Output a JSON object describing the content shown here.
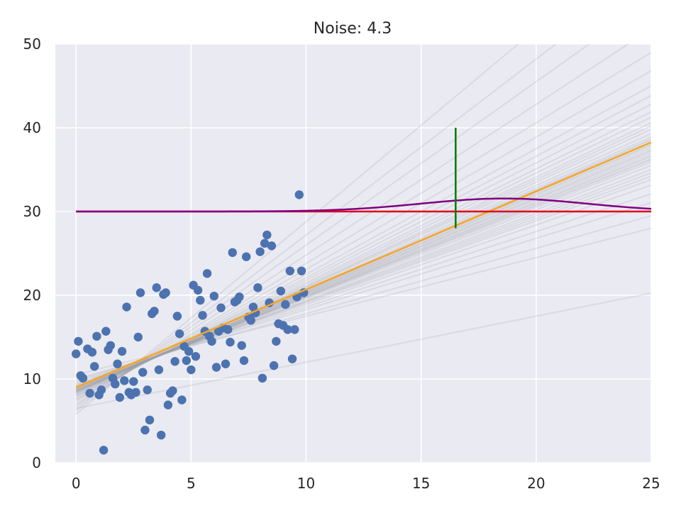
{
  "chart_data": {
    "type": "scatter",
    "title": "Noise: 4.3",
    "xlabel": "",
    "ylabel": "",
    "xlim": [
      -0.9,
      25
    ],
    "ylim": [
      0,
      50
    ],
    "x_ticks": [
      0,
      5,
      10,
      15,
      20,
      25
    ],
    "y_ticks": [
      0,
      10,
      20,
      30,
      40,
      50
    ],
    "grid": true,
    "colors": {
      "background": "#eaeaf2",
      "grid": "#ffffff",
      "points": "#4c72b0",
      "fit_line": "#f5a623",
      "sample_lines": "#a0a0a8",
      "horizontal_line": "#e0001b",
      "density_curve": "#800080",
      "interval_bar": "#007a00"
    },
    "scatter_points": [
      [
        0.0,
        13.0
      ],
      [
        0.1,
        14.5
      ],
      [
        0.2,
        10.4
      ],
      [
        0.3,
        10.1
      ],
      [
        0.5,
        13.6
      ],
      [
        0.6,
        8.3
      ],
      [
        0.7,
        13.2
      ],
      [
        0.8,
        11.5
      ],
      [
        0.9,
        15.1
      ],
      [
        1.0,
        8.1
      ],
      [
        1.1,
        8.7
      ],
      [
        1.2,
        1.5
      ],
      [
        1.3,
        15.7
      ],
      [
        1.4,
        13.5
      ],
      [
        1.5,
        14.0
      ],
      [
        1.6,
        10.1
      ],
      [
        1.7,
        9.4
      ],
      [
        1.8,
        11.8
      ],
      [
        1.9,
        7.8
      ],
      [
        2.0,
        13.3
      ],
      [
        2.1,
        9.8
      ],
      [
        2.2,
        18.6
      ],
      [
        2.3,
        8.4
      ],
      [
        2.4,
        8.1
      ],
      [
        2.5,
        9.7
      ],
      [
        2.6,
        8.4
      ],
      [
        2.7,
        15.0
      ],
      [
        2.8,
        20.3
      ],
      [
        2.9,
        10.8
      ],
      [
        3.0,
        3.9
      ],
      [
        3.1,
        8.7
      ],
      [
        3.2,
        5.1
      ],
      [
        3.3,
        17.8
      ],
      [
        3.4,
        18.1
      ],
      [
        3.5,
        20.9
      ],
      [
        3.6,
        11.1
      ],
      [
        3.7,
        3.3
      ],
      [
        3.8,
        20.1
      ],
      [
        3.9,
        20.3
      ],
      [
        4.0,
        6.9
      ],
      [
        4.1,
        8.3
      ],
      [
        4.2,
        8.6
      ],
      [
        4.3,
        12.1
      ],
      [
        4.4,
        17.5
      ],
      [
        4.5,
        15.4
      ],
      [
        4.6,
        7.5
      ],
      [
        4.7,
        13.9
      ],
      [
        4.8,
        12.2
      ],
      [
        4.9,
        13.3
      ],
      [
        5.0,
        11.1
      ],
      [
        5.1,
        21.2
      ],
      [
        5.2,
        12.7
      ],
      [
        5.3,
        20.6
      ],
      [
        5.4,
        19.4
      ],
      [
        5.5,
        17.6
      ],
      [
        5.6,
        15.7
      ],
      [
        5.7,
        22.6
      ],
      [
        5.8,
        15.1
      ],
      [
        5.9,
        14.5
      ],
      [
        6.0,
        19.9
      ],
      [
        6.1,
        11.4
      ],
      [
        6.2,
        15.7
      ],
      [
        6.3,
        18.5
      ],
      [
        6.4,
        16.1
      ],
      [
        6.5,
        11.8
      ],
      [
        6.6,
        15.9
      ],
      [
        6.7,
        14.4
      ],
      [
        6.8,
        25.1
      ],
      [
        6.9,
        19.2
      ],
      [
        7.0,
        19.4
      ],
      [
        7.1,
        19.8
      ],
      [
        7.2,
        14.0
      ],
      [
        7.3,
        12.2
      ],
      [
        7.4,
        24.6
      ],
      [
        7.5,
        17.4
      ],
      [
        7.6,
        17.0
      ],
      [
        7.7,
        18.6
      ],
      [
        7.8,
        17.9
      ],
      [
        7.9,
        20.9
      ],
      [
        8.0,
        25.2
      ],
      [
        8.1,
        10.1
      ],
      [
        8.2,
        26.2
      ],
      [
        8.3,
        27.2
      ],
      [
        8.4,
        19.1
      ],
      [
        8.5,
        25.9
      ],
      [
        8.6,
        11.6
      ],
      [
        8.7,
        14.5
      ],
      [
        8.8,
        16.6
      ],
      [
        8.9,
        20.5
      ],
      [
        9.0,
        16.4
      ],
      [
        9.1,
        18.9
      ],
      [
        9.2,
        15.9
      ],
      [
        9.3,
        22.9
      ],
      [
        9.4,
        12.4
      ],
      [
        9.5,
        15.9
      ],
      [
        9.6,
        19.8
      ],
      [
        9.7,
        32.0
      ],
      [
        9.8,
        22.9
      ],
      [
        9.9,
        20.3
      ]
    ],
    "fit_line": {
      "slope": 1.17,
      "intercept": 9.0,
      "x_range": [
        0,
        25
      ]
    },
    "sample_lines": [
      {
        "slope": 0.7,
        "intercept": 10.5
      },
      {
        "slope": 0.78,
        "intercept": 10.0
      },
      {
        "slope": 0.85,
        "intercept": 9.8
      },
      {
        "slope": 0.9,
        "intercept": 9.6
      },
      {
        "slope": 0.95,
        "intercept": 9.4
      },
      {
        "slope": 0.98,
        "intercept": 9.3
      },
      {
        "slope": 1.0,
        "intercept": 9.2
      },
      {
        "slope": 1.02,
        "intercept": 9.1
      },
      {
        "slope": 1.04,
        "intercept": 9.0
      },
      {
        "slope": 1.06,
        "intercept": 9.0
      },
      {
        "slope": 1.08,
        "intercept": 8.9
      },
      {
        "slope": 1.09,
        "intercept": 8.9
      },
      {
        "slope": 1.1,
        "intercept": 8.8
      },
      {
        "slope": 1.11,
        "intercept": 8.8
      },
      {
        "slope": 1.12,
        "intercept": 8.7
      },
      {
        "slope": 1.13,
        "intercept": 8.7
      },
      {
        "slope": 1.14,
        "intercept": 8.7
      },
      {
        "slope": 1.15,
        "intercept": 8.6
      },
      {
        "slope": 1.16,
        "intercept": 8.6
      },
      {
        "slope": 1.17,
        "intercept": 8.6
      },
      {
        "slope": 1.18,
        "intercept": 8.5
      },
      {
        "slope": 1.19,
        "intercept": 8.5
      },
      {
        "slope": 1.2,
        "intercept": 8.5
      },
      {
        "slope": 1.21,
        "intercept": 8.4
      },
      {
        "slope": 1.22,
        "intercept": 8.4
      },
      {
        "slope": 1.24,
        "intercept": 8.3
      },
      {
        "slope": 1.26,
        "intercept": 8.3
      },
      {
        "slope": 1.28,
        "intercept": 8.2
      },
      {
        "slope": 1.3,
        "intercept": 8.1
      },
      {
        "slope": 1.33,
        "intercept": 8.0
      },
      {
        "slope": 1.36,
        "intercept": 7.9
      },
      {
        "slope": 1.4,
        "intercept": 7.8
      },
      {
        "slope": 1.45,
        "intercept": 7.6
      },
      {
        "slope": 1.5,
        "intercept": 7.5
      },
      {
        "slope": 1.58,
        "intercept": 7.3
      },
      {
        "slope": 1.68,
        "intercept": 7.0
      },
      {
        "slope": 1.8,
        "intercept": 6.8
      },
      {
        "slope": 1.95,
        "intercept": 6.5
      },
      {
        "slope": 2.1,
        "intercept": 6.2
      },
      {
        "slope": 2.3,
        "intercept": 5.8
      },
      {
        "slope": 0.55,
        "intercept": 6.5
      }
    ],
    "horizontal_line": {
      "y": 30,
      "x_range": [
        0,
        25
      ]
    },
    "density_curve": {
      "baseline": 30,
      "peak_x": 18.6,
      "peak_height": 1.55,
      "sigma": 3.6,
      "x_range": [
        0,
        25
      ]
    },
    "interval_bar": {
      "x": 16.5,
      "y_range": [
        28,
        40
      ]
    }
  }
}
